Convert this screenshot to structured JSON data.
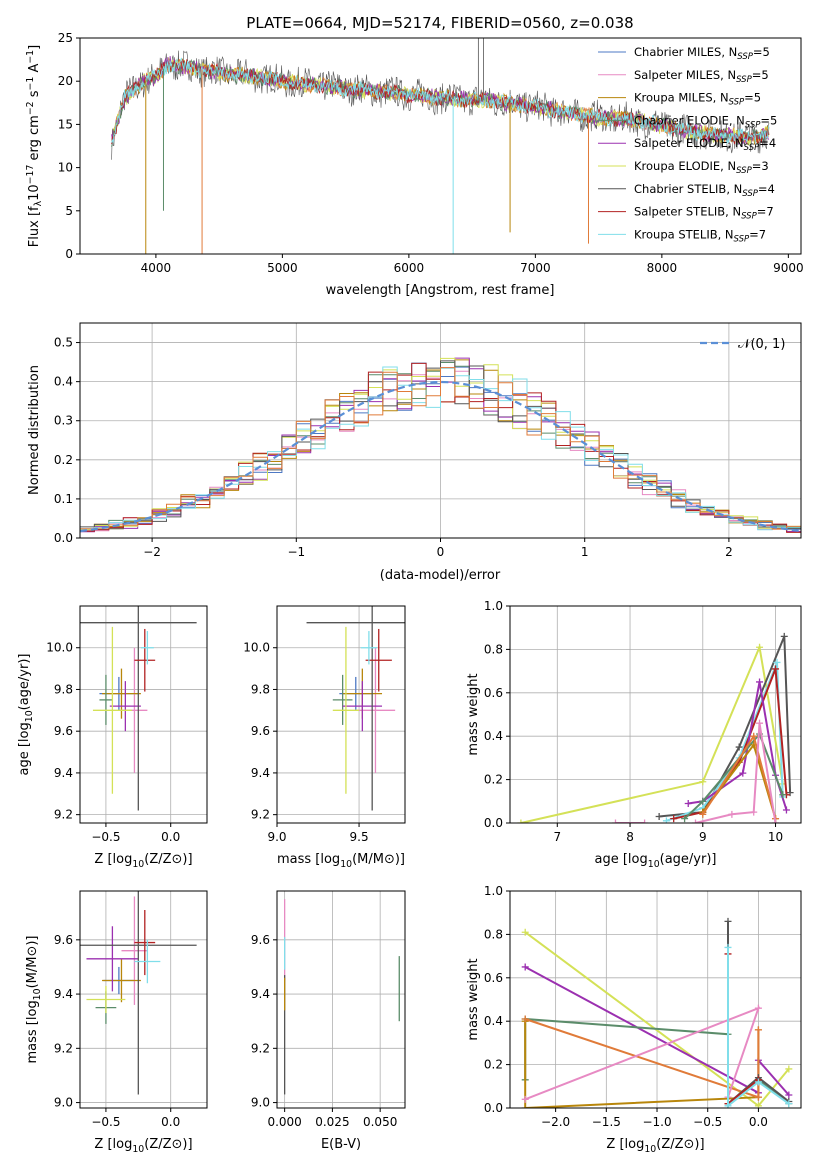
{
  "figure": {
    "title": "PLATE=0664, MJD=52174, FIBERID=0560, z=0.038"
  },
  "colors": {
    "Chabrier MILES": "#4e79c4",
    "Salpeter MILES": "#e78ac3",
    "Kroupa MILES": "#b8860b",
    "Chabrier ELODIE": "#5b8c6a",
    "Salpeter ELODIE": "#9b30b0",
    "Kroupa ELODIE": "#d4e157",
    "Chabrier STELIB": "#555555",
    "Salpeter STELIB": "#b22222",
    "Kroupa STELIB": "#80deea",
    "extra orange": "#e07b39",
    "normal": "#5a8fd6"
  },
  "chart_data": [
    {
      "id": "spectrum",
      "type": "line",
      "title": "PLATE=0664, MJD=52174, FIBERID=0560, z=0.038",
      "xlabel": "wavelength [Angstrom, rest frame]",
      "ylabel": "Flux [f",
      "ylabel_parts": [
        "Flux [f",
        "λ",
        "10",
        "−17",
        " erg cm",
        "−2",
        " s",
        "−1",
        " A",
        "−1",
        "]"
      ],
      "xlim": [
        3400,
        9100
      ],
      "ylim": [
        0,
        25
      ],
      "xticks": [
        4000,
        5000,
        6000,
        7000,
        8000,
        9000
      ],
      "yticks": [
        0,
        5,
        10,
        15,
        20,
        25
      ],
      "legend_loc": "upper right",
      "legend": [
        {
          "name": "Chabrier MILES",
          "n": "5"
        },
        {
          "name": "Salpeter MILES",
          "n": "5"
        },
        {
          "name": "Kroupa MILES",
          "n": "5"
        },
        {
          "name": "Chabrier ELODIE",
          "n": "5"
        },
        {
          "name": "Salpeter ELODIE",
          "n": "4"
        },
        {
          "name": "Kroupa ELODIE",
          "n": "3"
        },
        {
          "name": "Chabrier STELIB",
          "n": "4"
        },
        {
          "name": "Salpeter STELIB",
          "n": "7"
        },
        {
          "name": "Kroupa STELIB",
          "n": "7"
        }
      ],
      "legend_n_prefix": "N",
      "legend_n_sub": "SSP",
      "continuum": {
        "x": [
          3650,
          3750,
          3900,
          4000,
          4100,
          4300,
          4500,
          4800,
          5000,
          5300,
          5600,
          6000,
          6300,
          6600,
          6900,
          7200,
          7500,
          7800,
          8100,
          8400,
          8700,
          8850
        ],
        "y": [
          13.0,
          18.0,
          20.0,
          20.5,
          22.0,
          21.5,
          21.0,
          20.5,
          20.0,
          19.5,
          19.0,
          18.5,
          18.0,
          17.8,
          17.3,
          16.5,
          15.8,
          15.5,
          14.5,
          13.8,
          13.5,
          14.0
        ]
      },
      "spikes": [
        {
          "x": 3920,
          "y": 0.0
        },
        {
          "x": 4365,
          "y": 0.0
        },
        {
          "x": 6350,
          "y": 0.0
        },
        {
          "x": 6800,
          "y": 2.5
        },
        {
          "x": 7420,
          "y": 1.2
        },
        {
          "x": 4060,
          "y": 5.0
        },
        {
          "x": 6550,
          "y": 25.0
        },
        {
          "x": 6590,
          "y": 25.0
        }
      ]
    },
    {
      "id": "residuals",
      "type": "histogram",
      "xlabel": "(data-model)/error",
      "ylabel": "Normed distribution",
      "xlim": [
        -2.5,
        2.5
      ],
      "ylim": [
        0,
        0.55
      ],
      "xticks": [
        -2,
        -1,
        0,
        1,
        2
      ],
      "yticks": [
        0.0,
        0.1,
        0.2,
        0.3,
        0.4,
        0.5
      ],
      "legend_label": "𝒩(0, 1)",
      "bin_width": 0.1,
      "bin_start": -2.5
    },
    {
      "id": "age_vs_Z",
      "type": "errorbar",
      "xlabel": "Z [log",
      "ylabel": "age  [log",
      "xlim": [
        -0.7,
        0.28
      ],
      "ylim": [
        9.16,
        10.2
      ],
      "xticks": [
        -0.5,
        0.0
      ],
      "yticks": [
        9.2,
        9.4,
        9.6,
        9.8,
        10.0
      ],
      "points": [
        {
          "c": "Chabrier MILES",
          "x": -0.4,
          "xerr": 0.15,
          "y": 9.78,
          "yerr": 0.08
        },
        {
          "c": "Salpeter MILES",
          "x": -0.28,
          "xerr": 0.1,
          "y": 9.7,
          "yerr": 0.3
        },
        {
          "c": "Kroupa MILES",
          "x": -0.38,
          "xerr": 0.15,
          "y": 9.78,
          "yerr": 0.12
        },
        {
          "c": "Chabrier ELODIE",
          "x": -0.5,
          "xerr": 0.05,
          "y": 9.75,
          "yerr": 0.12
        },
        {
          "c": "Salpeter ELODIE",
          "x": -0.35,
          "xerr": 0.12,
          "y": 9.72,
          "yerr": 0.12
        },
        {
          "c": "Kroupa ELODIE",
          "x": -0.45,
          "xerr": 0.15,
          "y": 9.7,
          "yerr": 0.4
        },
        {
          "c": "Chabrier STELIB",
          "x": -0.25,
          "xerr": 0.45,
          "y": 10.12,
          "yerr": 0.9
        },
        {
          "c": "Salpeter STELIB",
          "x": -0.2,
          "xerr": 0.08,
          "y": 9.94,
          "yerr": 0.15
        },
        {
          "c": "Kroupa STELIB",
          "x": -0.18,
          "xerr": 0.05,
          "y": 10.0,
          "yerr": 0.08
        }
      ]
    },
    {
      "id": "age_vs_mass",
      "type": "errorbar",
      "xlabel": "mass [log",
      "ylabel": "",
      "xlim": [
        9.0,
        9.78
      ],
      "ylim": [
        9.16,
        10.2
      ],
      "xticks": [
        9.0,
        9.5
      ],
      "yticks": [
        9.2,
        9.4,
        9.6,
        9.8,
        10.0
      ],
      "points": [
        {
          "c": "Chabrier MILES",
          "x": 9.48,
          "xerr": 0.1,
          "y": 9.78,
          "yerr": 0.08
        },
        {
          "c": "Salpeter MILES",
          "x": 9.6,
          "xerr": 0.12,
          "y": 9.7,
          "yerr": 0.3
        },
        {
          "c": "Kroupa MILES",
          "x": 9.52,
          "xerr": 0.12,
          "y": 9.78,
          "yerr": 0.12
        },
        {
          "c": "Chabrier ELODIE",
          "x": 9.4,
          "xerr": 0.06,
          "y": 9.75,
          "yerr": 0.12
        },
        {
          "c": "Salpeter ELODIE",
          "x": 9.52,
          "xerr": 0.12,
          "y": 9.72,
          "yerr": 0.12
        },
        {
          "c": "Kroupa ELODIE",
          "x": 9.42,
          "xerr": 0.08,
          "y": 9.7,
          "yerr": 0.4
        },
        {
          "c": "Chabrier STELIB",
          "x": 9.58,
          "xerr": 0.4,
          "y": 10.12,
          "yerr": 0.9
        },
        {
          "c": "Salpeter STELIB",
          "x": 9.62,
          "xerr": 0.08,
          "y": 9.94,
          "yerr": 0.15
        },
        {
          "c": "Kroupa STELIB",
          "x": 9.56,
          "xerr": 0.05,
          "y": 10.0,
          "yerr": 0.08
        }
      ]
    },
    {
      "id": "weight_vs_age",
      "type": "line",
      "xlabel": "age  [log",
      "ylabel": "mass weight",
      "xlim": [
        6.35,
        10.35
      ],
      "ylim": [
        0,
        1.0
      ],
      "xticks": [
        7,
        8,
        9,
        10
      ],
      "yticks": [
        0.0,
        0.2,
        0.4,
        0.6,
        0.8,
        1.0
      ],
      "series": [
        {
          "c": "Kroupa ELODIE",
          "x": [
            6.5,
            9.0,
            9.78,
            10.1
          ],
          "y": [
            0.0,
            0.19,
            0.81,
            0.18
          ]
        },
        {
          "c": "Chabrier STELIB",
          "x": [
            8.4,
            9.0,
            9.5,
            10.12,
            10.2
          ],
          "y": [
            0.03,
            0.05,
            0.35,
            0.86,
            0.14
          ]
        },
        {
          "c": "Kroupa STELIB",
          "x": [
            8.5,
            9.0,
            9.5,
            10.02,
            10.1
          ],
          "y": [
            0.01,
            0.07,
            0.3,
            0.74,
            0.12
          ]
        },
        {
          "c": "Salpeter STELIB",
          "x": [
            8.6,
            9.0,
            9.5,
            10.0,
            10.15
          ],
          "y": [
            0.02,
            0.05,
            0.28,
            0.71,
            0.13
          ]
        },
        {
          "c": "Salpeter ELODIE",
          "x": [
            8.8,
            9.0,
            9.55,
            9.78,
            10.0,
            10.15
          ],
          "y": [
            0.09,
            0.1,
            0.23,
            0.65,
            0.22,
            0.06
          ]
        },
        {
          "c": "Chabrier ELODIE",
          "x": [
            8.75,
            9.0,
            9.78,
            10.1
          ],
          "y": [
            0.02,
            0.1,
            0.41,
            0.13
          ]
        },
        {
          "c": "Kroupa MILES",
          "x": [
            9.0,
            9.7,
            10.0
          ],
          "y": [
            0.05,
            0.36,
            0.02
          ]
        },
        {
          "c": "extra orange",
          "x": [
            9.0,
            9.7,
            10.0
          ],
          "y": [
            0.04,
            0.4,
            0.02
          ]
        },
        {
          "c": "Salpeter MILES",
          "x": [
            8.9,
            9.4,
            9.7,
            9.78,
            10.0
          ],
          "y": [
            0.0,
            0.04,
            0.05,
            0.46,
            0.0
          ]
        },
        {
          "c": "Salpeter MILES",
          "x": [
            7.8,
            8.2
          ],
          "y": [
            0.0,
            0.0
          ]
        }
      ]
    },
    {
      "id": "mass_vs_Z",
      "type": "errorbar",
      "xlabel": "Z [log",
      "ylabel": "mass [log",
      "xlim": [
        -0.7,
        0.28
      ],
      "ylim": [
        8.98,
        9.78
      ],
      "xticks": [
        -0.5,
        0.0
      ],
      "yticks": [
        9.0,
        9.2,
        9.4,
        9.6
      ],
      "points": [
        {
          "c": "Chabrier MILES",
          "x": -0.4,
          "xerr": 0.12,
          "y": 9.45,
          "yerr": 0.05
        },
        {
          "c": "Salpeter MILES",
          "x": -0.28,
          "xerr": 0.1,
          "y": 9.56,
          "yerr": 0.2
        },
        {
          "c": "Kroupa MILES",
          "x": -0.38,
          "xerr": 0.15,
          "y": 9.45,
          "yerr": 0.08
        },
        {
          "c": "Chabrier ELODIE",
          "x": -0.5,
          "xerr": 0.08,
          "y": 9.35,
          "yerr": 0.06
        },
        {
          "c": "Salpeter ELODIE",
          "x": -0.45,
          "xerr": 0.2,
          "y": 9.53,
          "yerr": 0.12
        },
        {
          "c": "Kroupa ELODIE",
          "x": -0.5,
          "xerr": 0.15,
          "y": 9.38,
          "yerr": 0.05
        },
        {
          "c": "Chabrier STELIB",
          "x": -0.25,
          "xerr": 0.45,
          "y": 9.58,
          "yerr": 0.55
        },
        {
          "c": "Salpeter STELIB",
          "x": -0.2,
          "xerr": 0.08,
          "y": 9.59,
          "yerr": 0.12
        },
        {
          "c": "Kroupa STELIB",
          "x": -0.18,
          "xerr": 0.1,
          "y": 9.52,
          "yerr": 0.08
        }
      ]
    },
    {
      "id": "mass_vs_ebv",
      "type": "errorbar",
      "xlabel": "E(B-V)",
      "ylabel": "",
      "xlim": [
        -0.004,
        0.063
      ],
      "ylim": [
        8.98,
        9.78
      ],
      "xticks": [
        0.0,
        0.025,
        0.05
      ],
      "xtick_labels": [
        "0.000",
        "0.025",
        "0.050"
      ],
      "yticks": [
        9.0,
        9.2,
        9.4,
        9.6
      ],
      "points": [
        {
          "c": "Salpeter MILES",
          "x": 0.0,
          "xerr": 0.0,
          "y": 9.6,
          "yerr": 0.15
        },
        {
          "c": "Chabrier STELIB",
          "x": 0.0,
          "xerr": 0.0,
          "y": 9.25,
          "yerr": 0.22
        },
        {
          "c": "Kroupa STELIB",
          "x": 0.0,
          "xerr": 0.0,
          "y": 9.55,
          "yerr": 0.06
        },
        {
          "c": "Kroupa MILES",
          "x": 0.0,
          "xerr": 0.0,
          "y": 9.4,
          "yerr": 0.06
        },
        {
          "c": "Chabrier ELODIE",
          "x": 0.06,
          "xerr": 0.0,
          "y": 9.42,
          "yerr": 0.12
        }
      ]
    },
    {
      "id": "weight_vs_Z",
      "type": "line",
      "xlabel": "Z [log",
      "ylabel": "mass weight",
      "xlim": [
        -2.45,
        0.42
      ],
      "ylim": [
        0,
        1.0
      ],
      "xticks": [
        -2.0,
        -1.5,
        -1.0,
        -0.5,
        0.0
      ],
      "yticks": [
        0.0,
        0.2,
        0.4,
        0.6,
        0.8,
        1.0
      ],
      "series": [
        {
          "c": "Kroupa ELODIE",
          "x": [
            -2.3,
            0.0,
            0.3
          ],
          "y": [
            0.81,
            0.01,
            0.18
          ]
        },
        {
          "c": "Salpeter ELODIE",
          "x": [
            -2.3,
            0.0,
            0.0,
            0.3
          ],
          "y": [
            0.65,
            0.07,
            0.22,
            0.06
          ]
        },
        {
          "c": "Chabrier ELODIE",
          "x": [
            -2.3,
            -2.3,
            -0.3,
            -0.3,
            0.0,
            0.3
          ],
          "y": [
            0.13,
            0.41,
            0.34,
            0.02,
            0.13,
            0.02
          ]
        },
        {
          "c": "Kroupa MILES",
          "x": [
            -2.3,
            -2.3,
            0.0,
            0.0
          ],
          "y": [
            0.4,
            0.0,
            0.05,
            0.36
          ]
        },
        {
          "c": "extra orange",
          "x": [
            -2.3,
            0.0,
            0.0
          ],
          "y": [
            0.41,
            0.05,
            0.36
          ]
        },
        {
          "c": "Salpeter MILES",
          "x": [
            -2.3,
            0.0,
            -0.3
          ],
          "y": [
            0.04,
            0.46,
            0.05
          ]
        },
        {
          "c": "Chabrier STELIB",
          "x": [
            -0.3,
            -0.3,
            0.0,
            0.3
          ],
          "y": [
            0.86,
            0.02,
            0.14,
            0.03
          ]
        },
        {
          "c": "Salpeter STELIB",
          "x": [
            -0.3,
            -0.3,
            0.0
          ],
          "y": [
            0.71,
            0.02,
            0.13
          ]
        },
        {
          "c": "Kroupa STELIB",
          "x": [
            -0.3,
            -0.3,
            0.0,
            0.3
          ],
          "y": [
            0.74,
            0.01,
            0.12,
            0.02
          ]
        }
      ]
    }
  ]
}
